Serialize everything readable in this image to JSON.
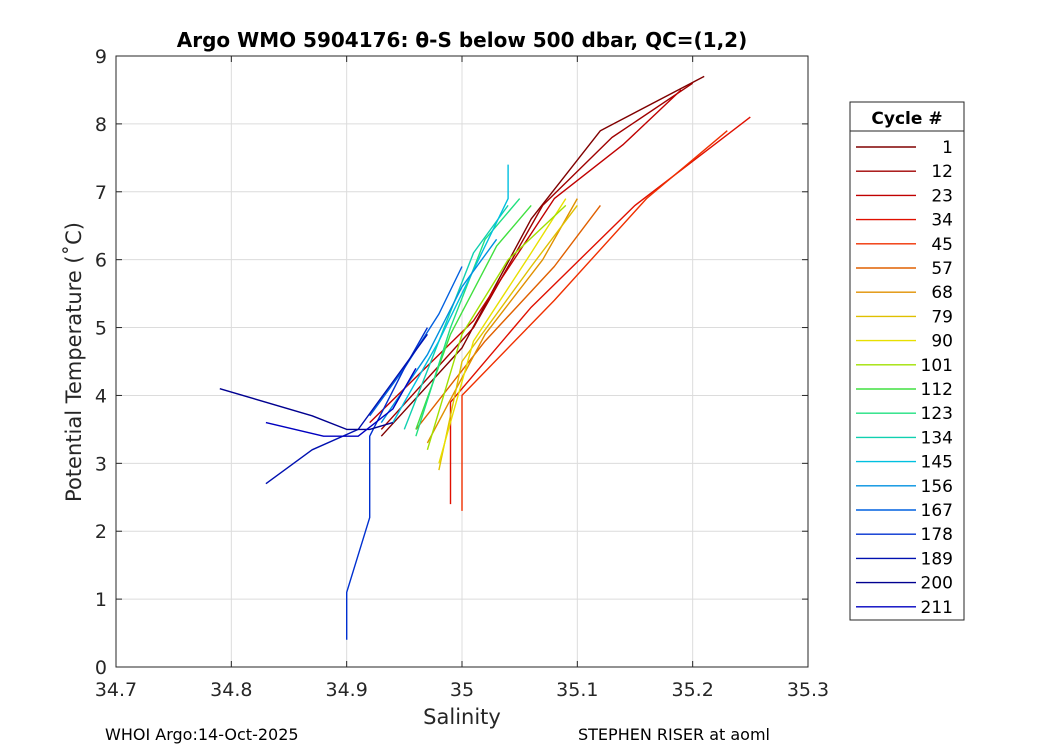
{
  "chart_data": {
    "type": "line",
    "title": "Argo WMO 5904176: θ-S below 500 dbar,  QC=(1,2)",
    "xlabel": "Salinity",
    "ylabel": "Potential Temperature (˚C)",
    "xlim": [
      34.7,
      35.3
    ],
    "ylim": [
      0,
      9
    ],
    "x_ticks": [
      "34.7",
      "34.8",
      "34.9",
      "35",
      "35.1",
      "35.2",
      "35.3"
    ],
    "y_ticks": [
      "0",
      "1",
      "2",
      "3",
      "4",
      "5",
      "6",
      "7",
      "8",
      "9"
    ],
    "grid": true,
    "legend_title": "Cycle #",
    "legend_position": "right, outside plot",
    "series": [
      {
        "name": "1",
        "color": "#800000",
        "points": [
          [
            34.93,
            3.4
          ],
          [
            35.0,
            4.7
          ],
          [
            35.06,
            6.6
          ],
          [
            35.12,
            7.9
          ],
          [
            35.21,
            8.7
          ]
        ]
      },
      {
        "name": "12",
        "color": "#a00000",
        "points": [
          [
            34.93,
            3.5
          ],
          [
            35.01,
            5.0
          ],
          [
            35.07,
            6.8
          ],
          [
            35.13,
            7.8
          ],
          [
            35.2,
            8.6
          ]
        ]
      },
      {
        "name": "23",
        "color": "#c00000",
        "points": [
          [
            34.92,
            3.6
          ],
          [
            35.01,
            5.1
          ],
          [
            35.08,
            6.9
          ],
          [
            35.14,
            7.7
          ],
          [
            35.19,
            8.5
          ]
        ]
      },
      {
        "name": "34",
        "color": "#e01000",
        "points": [
          [
            34.99,
            2.4
          ],
          [
            34.99,
            3.9
          ],
          [
            35.06,
            5.3
          ],
          [
            35.15,
            6.8
          ],
          [
            35.25,
            8.1
          ]
        ]
      },
      {
        "name": "45",
        "color": "#f03000",
        "points": [
          [
            35.0,
            2.3
          ],
          [
            35.0,
            4.0
          ],
          [
            35.08,
            5.4
          ],
          [
            35.16,
            6.9
          ],
          [
            35.23,
            7.9
          ]
        ]
      },
      {
        "name": "57",
        "color": "#e06000",
        "points": [
          [
            34.96,
            3.5
          ],
          [
            35.02,
            4.8
          ],
          [
            35.08,
            5.9
          ],
          [
            35.12,
            6.8
          ]
        ]
      },
      {
        "name": "68",
        "color": "#e09000",
        "points": [
          [
            34.97,
            3.3
          ],
          [
            35.02,
            4.9
          ],
          [
            35.07,
            6.0
          ],
          [
            35.1,
            6.9
          ]
        ]
      },
      {
        "name": "79",
        "color": "#e0c000",
        "points": [
          [
            34.98,
            2.9
          ],
          [
            35.0,
            4.5
          ],
          [
            35.06,
            5.9
          ],
          [
            35.1,
            6.8
          ]
        ]
      },
      {
        "name": "90",
        "color": "#e8e000",
        "points": [
          [
            34.98,
            3.0
          ],
          [
            35.01,
            4.8
          ],
          [
            35.06,
            6.1
          ],
          [
            35.09,
            6.9
          ]
        ]
      },
      {
        "name": "101",
        "color": "#a0e000",
        "points": [
          [
            34.97,
            3.2
          ],
          [
            35.0,
            4.9
          ],
          [
            35.04,
            6.0
          ],
          [
            35.09,
            6.8
          ]
        ]
      },
      {
        "name": "112",
        "color": "#40e040",
        "points": [
          [
            34.96,
            3.5
          ],
          [
            34.99,
            4.9
          ],
          [
            35.03,
            6.2
          ],
          [
            35.06,
            6.8
          ]
        ]
      },
      {
        "name": "123",
        "color": "#20e080",
        "points": [
          [
            34.96,
            3.4
          ],
          [
            34.99,
            5.0
          ],
          [
            35.02,
            6.3
          ],
          [
            35.05,
            6.9
          ]
        ]
      },
      {
        "name": "134",
        "color": "#10d0b0",
        "points": [
          [
            34.95,
            3.5
          ],
          [
            34.98,
            4.8
          ],
          [
            35.01,
            6.1
          ],
          [
            35.04,
            6.8
          ]
        ]
      },
      {
        "name": "145",
        "color": "#00c0e0",
        "points": [
          [
            34.94,
            3.6
          ],
          [
            34.98,
            4.8
          ],
          [
            35.02,
            6.2
          ],
          [
            35.04,
            6.9
          ],
          [
            35.04,
            7.4
          ]
        ]
      },
      {
        "name": "156",
        "color": "#0090e0",
        "points": [
          [
            34.93,
            3.6
          ],
          [
            34.97,
            4.6
          ],
          [
            35.0,
            5.6
          ],
          [
            35.03,
            6.3
          ]
        ]
      },
      {
        "name": "167",
        "color": "#0060e0",
        "points": [
          [
            34.92,
            3.7
          ],
          [
            34.95,
            4.4
          ],
          [
            34.98,
            5.2
          ],
          [
            35.0,
            5.9
          ]
        ]
      },
      {
        "name": "178",
        "color": "#0030d0",
        "points": [
          [
            34.9,
            0.4
          ],
          [
            34.9,
            1.1
          ],
          [
            34.92,
            2.2
          ],
          [
            34.92,
            3.4
          ],
          [
            34.95,
            4.4
          ],
          [
            34.97,
            5.0
          ]
        ]
      },
      {
        "name": "189",
        "color": "#0010b0",
        "points": [
          [
            34.83,
            2.7
          ],
          [
            34.87,
            3.2
          ],
          [
            34.91,
            3.5
          ],
          [
            34.94,
            4.2
          ],
          [
            34.97,
            4.9
          ]
        ]
      },
      {
        "name": "200",
        "color": "#000090",
        "points": [
          [
            34.79,
            4.1
          ],
          [
            34.87,
            3.7
          ],
          [
            34.9,
            3.5
          ],
          [
            34.92,
            3.5
          ],
          [
            34.94,
            3.6
          ]
        ]
      },
      {
        "name": "211",
        "color": "#0000c0",
        "points": [
          [
            34.83,
            3.6
          ],
          [
            34.88,
            3.4
          ],
          [
            34.91,
            3.4
          ],
          [
            34.94,
            3.8
          ],
          [
            34.96,
            4.4
          ]
        ]
      }
    ]
  },
  "footer": {
    "left": "WHOI Argo:14-Oct-2025",
    "right": "STEPHEN RISER at aoml"
  }
}
